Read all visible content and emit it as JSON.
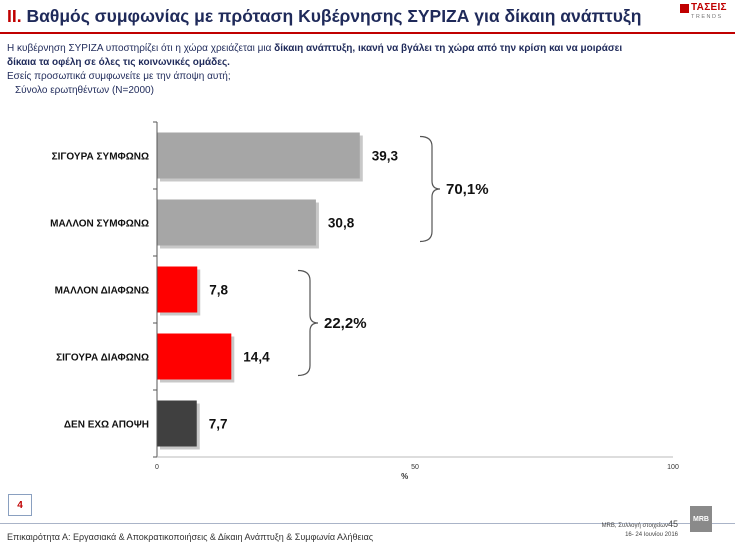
{
  "header": {
    "number": "II.",
    "title": "Βαθμός συμφωνίας με πρόταση Κυβέρνησης ΣΥΡΙΖΑ για δίκαιη ανάπτυξη",
    "logo_name": "ΤΑΣΕΙΣ",
    "logo_sub": "TRENDS"
  },
  "question": {
    "line1_plain": "Η κυβέρνηση ΣΥΡΙΖΑ υποστηρίζει ότι η χώρα χρειάζεται μια ",
    "line1_bold": "δίκαιη ανάπτυξη, ικανή να βγάλει τη χώρα από την κρίση και να μοιράσει",
    "line2_bold": "δίκαια τα οφέλη σε όλες τις κοινωνικές ομάδες.",
    "line3": "Εσείς προσωπικά συμφωνείτε με την άποψη αυτή;",
    "line4": "Σύνολο ερωτηθέντων (Ν=2000)"
  },
  "chart_data": {
    "type": "bar",
    "orientation": "horizontal",
    "categories": [
      "ΣΙΓΟΥΡΑ ΣΥΜΦΩΝΩ",
      "ΜΑΛΛΟΝ ΣΥΜΦΩΝΩ",
      "ΜΑΛΛΟΝ ΔΙΑΦΩΝΩ",
      "ΣΙΓΟΥΡΑ ΔΙΑΦΩΝΩ",
      "ΔΕΝ ΕΧΩ ΑΠΟΨΗ"
    ],
    "values": [
      39.3,
      30.8,
      7.8,
      14.4,
      7.7
    ],
    "value_labels": [
      "39,3",
      "30,8",
      "7,8",
      "14,4",
      "7,7"
    ],
    "colors": [
      "#a6a6a6",
      "#a6a6a6",
      "#ff0000",
      "#ff0000",
      "#404040"
    ],
    "xlim": [
      0,
      100
    ],
    "xticks": [
      "0",
      "50",
      "100"
    ],
    "xlabel": "%",
    "groups": [
      {
        "label": "70,1%",
        "from": 0,
        "to": 1
      },
      {
        "label": "22,2%",
        "from": 2,
        "to": 3
      }
    ]
  },
  "footer": {
    "page_box": "4",
    "left_text": "Επικαιρότητα Α: Εργασιακά & Αποκρατικοποιήσεις & Δίκαιη Ανάπτυξη & Συμφωνία Αλήθειας",
    "right_line1": "MRB, Συλλογή στοιχείων",
    "right_page": "45",
    "right_line2": "16- 24 Ιουνίου 2016",
    "mrb_logo": "MRB"
  }
}
